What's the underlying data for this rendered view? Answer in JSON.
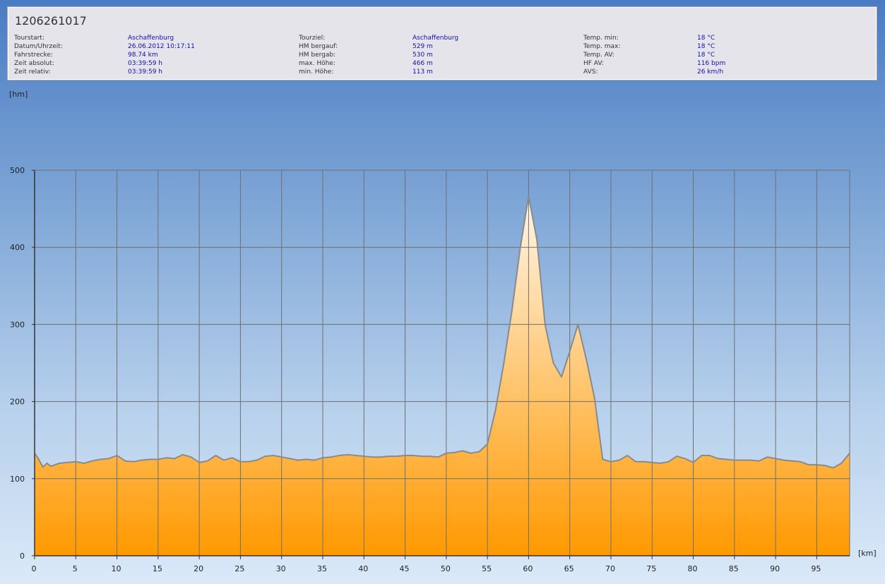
{
  "header": {
    "title": "1206261017"
  },
  "info": [
    [
      {
        "label": "Tourstart:",
        "value": "Aschaffenburg"
      },
      {
        "label": "Datum/Uhrzeit:",
        "value": "26.06.2012 10:17:11"
      },
      {
        "label": "Fahrstrecke:",
        "value": "98.74 km"
      },
      {
        "label": "Zeit absolut:",
        "value": "03:39:59 h"
      },
      {
        "label": "Zeit relativ:",
        "value": "03:39:59 h"
      }
    ],
    [
      {
        "label": "Tourziel:",
        "value": "Aschaffenburg"
      },
      {
        "label": "HM bergauf:",
        "value": "529 m"
      },
      {
        "label": "HM bergab:",
        "value": "530 m"
      },
      {
        "label": "max. Höhe:",
        "value": "466 m"
      },
      {
        "label": "min. Höhe:",
        "value": "113 m"
      }
    ],
    [
      {
        "label": "Temp. min:",
        "value": "18 °C"
      },
      {
        "label": "Temp. max:",
        "value": "18 °C"
      },
      {
        "label": "Temp. AV:",
        "value": "18 °C"
      },
      {
        "label": "HF AV:",
        "value": "116 bpm"
      },
      {
        "label": "AVS:",
        "value": "26 km/h"
      }
    ]
  ],
  "chart_data": {
    "type": "area",
    "y_label": "[hm]",
    "x_label": "[km]",
    "x": [
      0,
      0.5,
      1,
      1.5,
      2,
      3,
      4,
      5,
      6,
      7,
      8,
      9,
      10,
      11,
      12,
      13,
      14,
      15,
      16,
      17,
      18,
      19,
      20,
      21,
      22,
      23,
      24,
      25,
      26,
      27,
      28,
      29,
      30,
      31,
      32,
      33,
      34,
      35,
      36,
      37,
      38,
      39,
      40,
      41,
      42,
      43,
      44,
      45,
      46,
      47,
      48,
      49,
      50,
      51,
      52,
      53,
      54,
      55,
      56,
      57,
      58,
      59,
      60,
      61,
      62,
      63,
      64,
      65,
      66,
      67,
      68,
      69,
      70,
      71,
      72,
      73,
      74,
      75,
      76,
      77,
      78,
      79,
      80,
      81,
      82,
      83,
      84,
      85,
      86,
      87,
      88,
      89,
      90,
      91,
      92,
      93,
      94,
      95,
      96,
      97,
      98,
      99
    ],
    "values": [
      133,
      125,
      115,
      120,
      116,
      120,
      121,
      122,
      120,
      123,
      125,
      126,
      130,
      123,
      122,
      124,
      125,
      125,
      127,
      126,
      131,
      128,
      121,
      123,
      130,
      124,
      127,
      122,
      122,
      124,
      129,
      130,
      128,
      126,
      124,
      125,
      124,
      127,
      128,
      130,
      131,
      130,
      129,
      128,
      128,
      129,
      129,
      130,
      130,
      129,
      129,
      128,
      133,
      134,
      136,
      133,
      135,
      145,
      190,
      250,
      320,
      400,
      466,
      410,
      300,
      250,
      232,
      265,
      300,
      255,
      205,
      125,
      122,
      124,
      130,
      122,
      122,
      121,
      120,
      122,
      129,
      126,
      121,
      130,
      130,
      126,
      125,
      124,
      124,
      124,
      123,
      128,
      126,
      124,
      123,
      122,
      118,
      118,
      117,
      114,
      120,
      133
    ],
    "xlim": [
      0,
      99
    ],
    "ylim": [
      0,
      500
    ],
    "xticks": [
      0,
      5,
      10,
      15,
      20,
      25,
      30,
      35,
      40,
      45,
      50,
      55,
      60,
      65,
      70,
      75,
      80,
      85,
      90,
      95
    ],
    "yticks": [
      0,
      100,
      200,
      300,
      400,
      500
    ],
    "grid": true,
    "color": "#8a8a8a",
    "fill_colors": [
      "#ff9900",
      "#fff6ea"
    ]
  }
}
